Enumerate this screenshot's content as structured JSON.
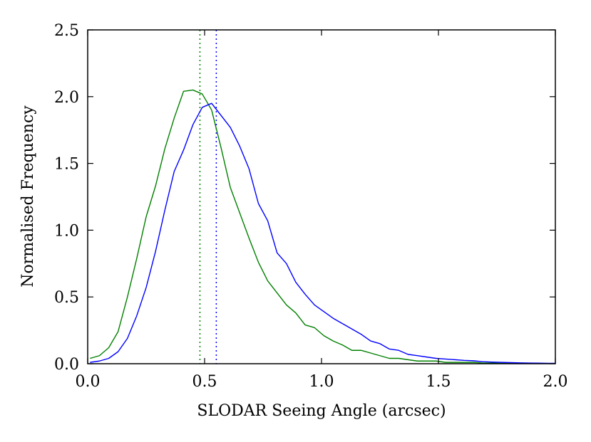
{
  "chart_data": {
    "type": "line",
    "title": "",
    "xlabel": "SLODAR Seeing Angle (arcsec)",
    "ylabel": "Normalised Frequency",
    "xlim": [
      0.0,
      2.0
    ],
    "ylim": [
      0.0,
      2.5
    ],
    "xticks": [
      0.0,
      0.5,
      1.0,
      1.5,
      2.0
    ],
    "xtick_labels": [
      "0.0",
      "0.5",
      "1.0",
      "1.5",
      "2.0"
    ],
    "yticks": [
      0.0,
      0.5,
      1.0,
      1.5,
      2.0,
      2.5
    ],
    "ytick_labels": [
      "0.0",
      "0.5",
      "1.0",
      "1.5",
      "2.0",
      "2.5"
    ],
    "grid": false,
    "series": [
      {
        "name": "green",
        "color": "#008000",
        "x": [
          0.01,
          0.05,
          0.09,
          0.13,
          0.17,
          0.21,
          0.25,
          0.29,
          0.33,
          0.37,
          0.41,
          0.45,
          0.49,
          0.53,
          0.57,
          0.61,
          0.65,
          0.69,
          0.73,
          0.77,
          0.81,
          0.85,
          0.89,
          0.93,
          0.97,
          1.01,
          1.05,
          1.09,
          1.13,
          1.17,
          1.21,
          1.25,
          1.29,
          1.33,
          1.37,
          1.41,
          1.45,
          1.49,
          1.53,
          1.57,
          1.61,
          1.65,
          1.69,
          1.73,
          1.77,
          1.81,
          1.85,
          1.89,
          1.93,
          1.97,
          2.0
        ],
        "y": [
          0.04,
          0.06,
          0.12,
          0.24,
          0.5,
          0.79,
          1.1,
          1.33,
          1.61,
          1.84,
          2.04,
          2.05,
          2.02,
          1.9,
          1.62,
          1.32,
          1.13,
          0.94,
          0.76,
          0.62,
          0.53,
          0.44,
          0.38,
          0.29,
          0.27,
          0.21,
          0.17,
          0.14,
          0.1,
          0.1,
          0.08,
          0.06,
          0.04,
          0.04,
          0.03,
          0.02,
          0.02,
          0.02,
          0.01,
          0.01,
          0.01,
          0.01,
          0.005,
          0.005,
          0.003,
          0.003,
          0.002,
          0.002,
          0.001,
          0.001,
          0.001
        ]
      },
      {
        "name": "blue",
        "color": "#0000ff",
        "x": [
          0.01,
          0.05,
          0.09,
          0.13,
          0.17,
          0.21,
          0.25,
          0.29,
          0.33,
          0.37,
          0.41,
          0.45,
          0.49,
          0.53,
          0.57,
          0.61,
          0.65,
          0.69,
          0.73,
          0.77,
          0.81,
          0.85,
          0.89,
          0.93,
          0.97,
          1.01,
          1.05,
          1.09,
          1.13,
          1.17,
          1.21,
          1.25,
          1.29,
          1.33,
          1.37,
          1.41,
          1.45,
          1.49,
          1.53,
          1.57,
          1.61,
          1.65,
          1.69,
          1.73,
          1.77,
          1.81,
          1.85,
          1.89,
          1.93,
          1.97,
          2.0
        ],
        "y": [
          0.01,
          0.02,
          0.04,
          0.09,
          0.19,
          0.36,
          0.57,
          0.84,
          1.15,
          1.44,
          1.6,
          1.79,
          1.92,
          1.95,
          1.86,
          1.77,
          1.63,
          1.46,
          1.2,
          1.07,
          0.83,
          0.75,
          0.61,
          0.52,
          0.44,
          0.39,
          0.34,
          0.3,
          0.26,
          0.22,
          0.17,
          0.15,
          0.11,
          0.1,
          0.07,
          0.06,
          0.05,
          0.04,
          0.035,
          0.03,
          0.025,
          0.022,
          0.015,
          0.012,
          0.01,
          0.008,
          0.006,
          0.005,
          0.004,
          0.003,
          0.003
        ]
      }
    ],
    "vlines": [
      {
        "name": "green-median",
        "x": 0.48,
        "color": "#008000",
        "style": "dotted"
      },
      {
        "name": "blue-median",
        "x": 0.55,
        "color": "#0000ff",
        "style": "dotted"
      }
    ]
  }
}
